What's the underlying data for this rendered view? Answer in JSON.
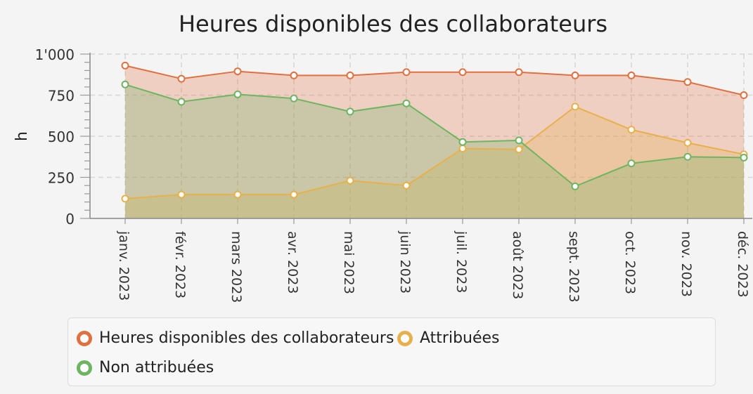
{
  "chart_data": {
    "type": "area",
    "title": "Heures disponibles des collaborateurs",
    "ylabel": "h",
    "xlabel": "",
    "ylim": [
      0,
      1000
    ],
    "yticks": [
      0,
      250,
      500,
      750,
      1000
    ],
    "ytick_labels": [
      "0",
      "250",
      "500",
      "750",
      "1'000"
    ],
    "categories": [
      "janv. 2023",
      "févr. 2023",
      "mars 2023",
      "avr. 2023",
      "mai 2023",
      "juin 2023",
      "juil. 2023",
      "août 2023",
      "sept. 2023",
      "oct. 2023",
      "nov. 2023",
      "déc. 2023"
    ],
    "series": [
      {
        "name": "Heures disponibles des collaborateurs",
        "color": "#e07040",
        "values": [
          930,
          850,
          895,
          870,
          870,
          890,
          890,
          890,
          870,
          870,
          830,
          750
        ]
      },
      {
        "name": "Attribuées",
        "color": "#e8b04a",
        "values": [
          120,
          145,
          145,
          145,
          230,
          200,
          425,
          420,
          680,
          540,
          460,
          390
        ]
      },
      {
        "name": "Non attribuées",
        "color": "#6db560",
        "values": [
          815,
          710,
          755,
          730,
          650,
          700,
          465,
          475,
          195,
          335,
          375,
          370
        ]
      }
    ],
    "grid": true,
    "legend_position": "bottom"
  }
}
